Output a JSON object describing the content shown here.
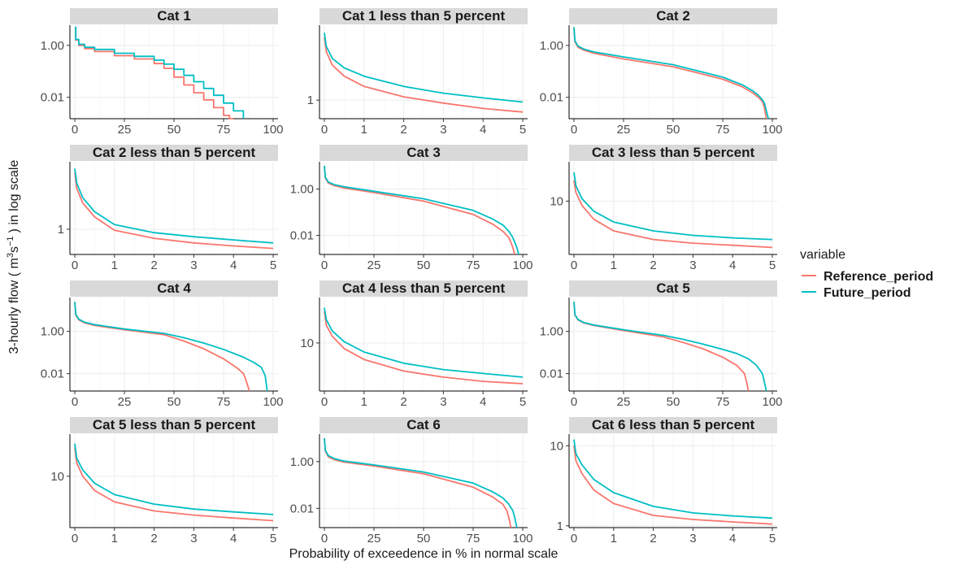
{
  "chart_data": {
    "type": "line",
    "xlabel": "Probability of exceedence in % in normal scale",
    "ylabel_prefix": "3-hourly flow ( m",
    "ylabel_unit_sup1": "3",
    "ylabel_unit_mid": "s",
    "ylabel_unit_sup2": "−1",
    "ylabel_suffix": ") in log scale",
    "y_scale": "log",
    "grid": true,
    "legend": {
      "title": "variable",
      "position": "right",
      "entries": [
        {
          "name": "Reference_period",
          "color": "#F8766D"
        },
        {
          "name": "Future_period",
          "color": "#00BFC4"
        }
      ]
    },
    "panels": [
      {
        "title": "Cat  1",
        "xlim": [
          0,
          100
        ],
        "xticks": [
          0,
          25,
          50,
          75,
          100
        ],
        "ylim": [
          0.0015,
          6
        ],
        "yticks": [
          {
            "v": 1,
            "label": "1.00"
          },
          {
            "v": 0.01,
            "label": "0.01"
          }
        ],
        "series": [
          {
            "name": "Reference_period",
            "x": [
              0,
              0.5,
              2,
              5,
              10,
              20,
              30,
              40,
              45,
              50,
              55,
              60,
              65,
              70,
              75,
              78,
              80
            ],
            "y": [
              5,
              1.6,
              1.0,
              0.75,
              0.58,
              0.4,
              0.3,
              0.2,
              0.13,
              0.06,
              0.03,
              0.015,
              0.008,
              0.004,
              0.002,
              0.0015,
              0.0015
            ],
            "step": true
          },
          {
            "name": "Future_period",
            "x": [
              0,
              0.5,
              2,
              5,
              10,
              20,
              30,
              40,
              45,
              50,
              55,
              60,
              65,
              70,
              75,
              80,
              85
            ],
            "y": [
              5,
              1.7,
              1.1,
              0.85,
              0.7,
              0.5,
              0.38,
              0.27,
              0.19,
              0.12,
              0.07,
              0.04,
              0.022,
              0.012,
              0.006,
              0.003,
              0.0015
            ],
            "step": true
          }
        ]
      },
      {
        "title": "Cat  1  less  than  5  percent",
        "xlim": [
          0,
          5
        ],
        "xticks": [
          0,
          1,
          2,
          3,
          4,
          5
        ],
        "ylim": [
          0.45,
          25
        ],
        "yticks": [
          {
            "v": 1,
            "label": "1"
          }
        ],
        "series": [
          {
            "name": "Reference_period",
            "x": [
              0,
              0.05,
              0.2,
              0.5,
              1,
              2,
              3,
              4,
              5
            ],
            "y": [
              15,
              8,
              4.5,
              2.8,
              1.8,
              1.15,
              0.88,
              0.7,
              0.6
            ]
          },
          {
            "name": "Future_period",
            "x": [
              0,
              0.05,
              0.2,
              0.5,
              1,
              2,
              3,
              4,
              5
            ],
            "y": [
              18,
              10,
              6.0,
              4.0,
              2.8,
              1.8,
              1.35,
              1.1,
              0.92
            ]
          }
        ]
      },
      {
        "title": "Cat  2",
        "xlim": [
          0,
          100
        ],
        "xticks": [
          0,
          25,
          50,
          75,
          100
        ],
        "ylim": [
          0.0015,
          6
        ],
        "yticks": [
          {
            "v": 1,
            "label": "1.00"
          },
          {
            "v": 0.01,
            "label": "0.01"
          }
        ],
        "series": [
          {
            "name": "Reference_period",
            "x": [
              0,
              0.5,
              2,
              5,
              10,
              25,
              50,
              75,
              85,
              90,
              93,
              95,
              96,
              97
            ],
            "y": [
              5,
              1.4,
              0.85,
              0.65,
              0.5,
              0.3,
              0.15,
              0.05,
              0.025,
              0.015,
              0.01,
              0.007,
              0.004,
              0.0015
            ]
          },
          {
            "name": "Future_period",
            "x": [
              0,
              0.5,
              2,
              5,
              10,
              25,
              50,
              75,
              85,
              90,
              93,
              95,
              96,
              97,
              98
            ],
            "y": [
              5,
              1.5,
              0.95,
              0.72,
              0.56,
              0.36,
              0.18,
              0.06,
              0.03,
              0.018,
              0.012,
              0.008,
              0.006,
              0.003,
              0.0015
            ]
          }
        ]
      },
      {
        "title": "Cat  2  less  than  5  percent",
        "xlim": [
          0,
          5
        ],
        "xticks": [
          0,
          1,
          2,
          3,
          4,
          5
        ],
        "ylim": [
          0.3,
          25
        ],
        "yticks": [
          {
            "v": 1,
            "label": "1"
          }
        ],
        "series": [
          {
            "name": "Reference_period",
            "x": [
              0,
              0.05,
              0.2,
              0.5,
              1,
              2,
              3,
              4,
              5
            ],
            "y": [
              15,
              7,
              3.5,
              1.8,
              0.95,
              0.65,
              0.52,
              0.45,
              0.4
            ]
          },
          {
            "name": "Future_period",
            "x": [
              0,
              0.05,
              0.2,
              0.5,
              1,
              2,
              3,
              4,
              5
            ],
            "y": [
              18,
              9,
              4.5,
              2.3,
              1.25,
              0.85,
              0.7,
              0.6,
              0.52
            ]
          }
        ]
      },
      {
        "title": "Cat  3",
        "xlim": [
          0,
          100
        ],
        "xticks": [
          0,
          25,
          50,
          75,
          100
        ],
        "ylim": [
          0.0015,
          15
        ],
        "yticks": [
          {
            "v": 1,
            "label": "1.00"
          },
          {
            "v": 0.01,
            "label": "0.01"
          }
        ],
        "series": [
          {
            "name": "Reference_period",
            "x": [
              0,
              0.5,
              2,
              5,
              10,
              25,
              50,
              75,
              85,
              90,
              93,
              94,
              95,
              96
            ],
            "y": [
              10,
              3,
              1.8,
              1.4,
              1.1,
              0.7,
              0.3,
              0.08,
              0.03,
              0.015,
              0.008,
              0.005,
              0.003,
              0.0015
            ]
          },
          {
            "name": "Future_period",
            "x": [
              0,
              0.5,
              2,
              5,
              10,
              25,
              50,
              75,
              85,
              90,
              93,
              95,
              96,
              97,
              98
            ],
            "y": [
              10,
              3.2,
              2.0,
              1.55,
              1.25,
              0.8,
              0.38,
              0.12,
              0.05,
              0.028,
              0.015,
              0.008,
              0.005,
              0.003,
              0.0015
            ]
          }
        ]
      },
      {
        "title": "Cat  3  less  than  5  percent",
        "xlim": [
          0,
          5
        ],
        "xticks": [
          0,
          1,
          2,
          3,
          4,
          5
        ],
        "ylim": [
          1.3,
          45
        ],
        "yticks": [
          {
            "v": 10,
            "label": "10"
          }
        ],
        "series": [
          {
            "name": "Reference_period",
            "x": [
              0,
              0.05,
              0.2,
              0.5,
              1,
              2,
              3,
              4,
              5
            ],
            "y": [
              22,
              14,
              8.5,
              5.0,
              3.2,
              2.3,
              2.0,
              1.85,
              1.7
            ]
          },
          {
            "name": "Future_period",
            "x": [
              0,
              0.05,
              0.2,
              0.5,
              1,
              2,
              3,
              4,
              5
            ],
            "y": [
              30,
              18,
              11,
              6.8,
              4.5,
              3.2,
              2.7,
              2.45,
              2.3
            ]
          }
        ]
      },
      {
        "title": "Cat  4",
        "xlim": [
          0,
          100
        ],
        "xticks": [
          0,
          25,
          50,
          75,
          100
        ],
        "ylim": [
          0.0015,
          40
        ],
        "yticks": [
          {
            "v": 1,
            "label": "1.00"
          },
          {
            "v": 0.01,
            "label": "0.01"
          }
        ],
        "series": [
          {
            "name": "Reference_period",
            "x": [
              0,
              0.5,
              2,
              5,
              10,
              25,
              45,
              55,
              65,
              75,
              82,
              85,
              86,
              87,
              88
            ],
            "y": [
              25,
              6,
              3.5,
              2.5,
              1.9,
              1.2,
              0.7,
              0.35,
              0.15,
              0.05,
              0.018,
              0.01,
              0.006,
              0.003,
              0.0015
            ]
          },
          {
            "name": "Future_period",
            "x": [
              0,
              0.5,
              2,
              5,
              10,
              25,
              45,
              55,
              65,
              75,
              85,
              90,
              94,
              96,
              97
            ],
            "y": [
              25,
              6.5,
              3.8,
              2.7,
              2.1,
              1.3,
              0.8,
              0.5,
              0.28,
              0.14,
              0.06,
              0.035,
              0.02,
              0.008,
              0.0015
            ]
          }
        ]
      },
      {
        "title": "Cat  4  less  than  5  percent",
        "xlim": [
          0,
          5
        ],
        "xticks": [
          0,
          1,
          2,
          3,
          4,
          5
        ],
        "ylim": [
          1.5,
          60
        ],
        "yticks": [
          {
            "v": 10,
            "label": "10"
          }
        ],
        "series": [
          {
            "name": "Reference_period",
            "x": [
              0,
              0.05,
              0.2,
              0.5,
              1,
              2,
              3,
              4,
              5
            ],
            "y": [
              35,
              20,
              13,
              8.0,
              5.2,
              3.3,
              2.6,
              2.2,
              2.0
            ]
          },
          {
            "name": "Future_period",
            "x": [
              0,
              0.05,
              0.2,
              0.5,
              1,
              2,
              3,
              4,
              5
            ],
            "y": [
              40,
              25,
              16,
              10.5,
              7.0,
              4.5,
              3.5,
              3.0,
              2.6
            ]
          }
        ]
      },
      {
        "title": "Cat  5",
        "xlim": [
          0,
          100
        ],
        "xticks": [
          0,
          25,
          50,
          75,
          100
        ],
        "ylim": [
          0.0015,
          40
        ],
        "yticks": [
          {
            "v": 1,
            "label": "1.00"
          },
          {
            "v": 0.01,
            "label": "0.01"
          }
        ],
        "series": [
          {
            "name": "Reference_period",
            "x": [
              0,
              0.5,
              2,
              5,
              10,
              25,
              45,
              55,
              65,
              75,
              82,
              86,
              87,
              88
            ],
            "y": [
              25,
              6,
              3.5,
              2.5,
              1.9,
              1.1,
              0.55,
              0.3,
              0.15,
              0.06,
              0.025,
              0.01,
              0.004,
              0.0015
            ]
          },
          {
            "name": "Future_period",
            "x": [
              0,
              0.5,
              2,
              5,
              10,
              25,
              45,
              55,
              65,
              75,
              82,
              88,
              92,
              95,
              96,
              97
            ],
            "y": [
              25,
              6.2,
              3.7,
              2.6,
              2.0,
              1.2,
              0.65,
              0.42,
              0.25,
              0.14,
              0.09,
              0.05,
              0.025,
              0.01,
              0.004,
              0.0015
            ]
          }
        ]
      },
      {
        "title": "Cat  5  less  than  5  percent",
        "xlim": [
          0,
          5
        ],
        "xticks": [
          0,
          1,
          2,
          3,
          4,
          5
        ],
        "ylim": [
          1.6,
          45
        ],
        "yticks": [
          {
            "v": 10,
            "label": "10"
          }
        ],
        "series": [
          {
            "name": "Reference_period",
            "x": [
              0,
              0.05,
              0.2,
              0.5,
              1,
              2,
              3,
              4,
              5
            ],
            "y": [
              28,
              16,
              10,
              6.0,
              4.0,
              2.9,
              2.5,
              2.25,
              2.05
            ]
          },
          {
            "name": "Future_period",
            "x": [
              0,
              0.05,
              0.2,
              0.5,
              1,
              2,
              3,
              4,
              5
            ],
            "y": [
              32,
              19,
              12.5,
              7.8,
              5.2,
              3.7,
              3.1,
              2.8,
              2.55
            ]
          }
        ]
      },
      {
        "title": "Cat  6",
        "xlim": [
          0,
          100
        ],
        "xticks": [
          0,
          25,
          50,
          75,
          100
        ],
        "ylim": [
          0.0015,
          15
        ],
        "yticks": [
          {
            "v": 1,
            "label": "1.00"
          },
          {
            "v": 0.01,
            "label": "0.01"
          }
        ],
        "series": [
          {
            "name": "Reference_period",
            "x": [
              0,
              0.5,
              2,
              5,
              10,
              25,
              50,
              75,
              85,
              90,
              92,
              93,
              94
            ],
            "y": [
              10,
              2.8,
              1.6,
              1.2,
              0.95,
              0.65,
              0.3,
              0.08,
              0.03,
              0.015,
              0.008,
              0.004,
              0.0015
            ]
          },
          {
            "name": "Future_period",
            "x": [
              0,
              0.5,
              2,
              5,
              10,
              25,
              50,
              75,
              85,
              90,
              93,
              95,
              96,
              97
            ],
            "y": [
              10,
              3.0,
              1.8,
              1.35,
              1.05,
              0.72,
              0.36,
              0.12,
              0.05,
              0.028,
              0.015,
              0.008,
              0.004,
              0.0015
            ]
          }
        ]
      },
      {
        "title": "Cat  6  less  than  5  percent",
        "xlim": [
          0,
          5
        ],
        "xticks": [
          0,
          1,
          2,
          3,
          4,
          5
        ],
        "ylim": [
          0.95,
          14
        ],
        "yticks": [
          {
            "v": 1,
            "label": "1"
          },
          {
            "v": 10,
            "label": "10"
          }
        ],
        "series": [
          {
            "name": "Reference_period",
            "x": [
              0,
              0.05,
              0.2,
              0.5,
              1,
              2,
              3,
              4,
              5
            ],
            "y": [
              10,
              6.5,
              4.5,
              2.8,
              1.9,
              1.35,
              1.2,
              1.12,
              1.05
            ]
          },
          {
            "name": "Future_period",
            "x": [
              0,
              0.05,
              0.2,
              0.5,
              1,
              2,
              3,
              4,
              5
            ],
            "y": [
              12,
              8.0,
              5.8,
              3.8,
              2.6,
              1.75,
              1.45,
              1.33,
              1.25
            ]
          }
        ]
      }
    ]
  }
}
